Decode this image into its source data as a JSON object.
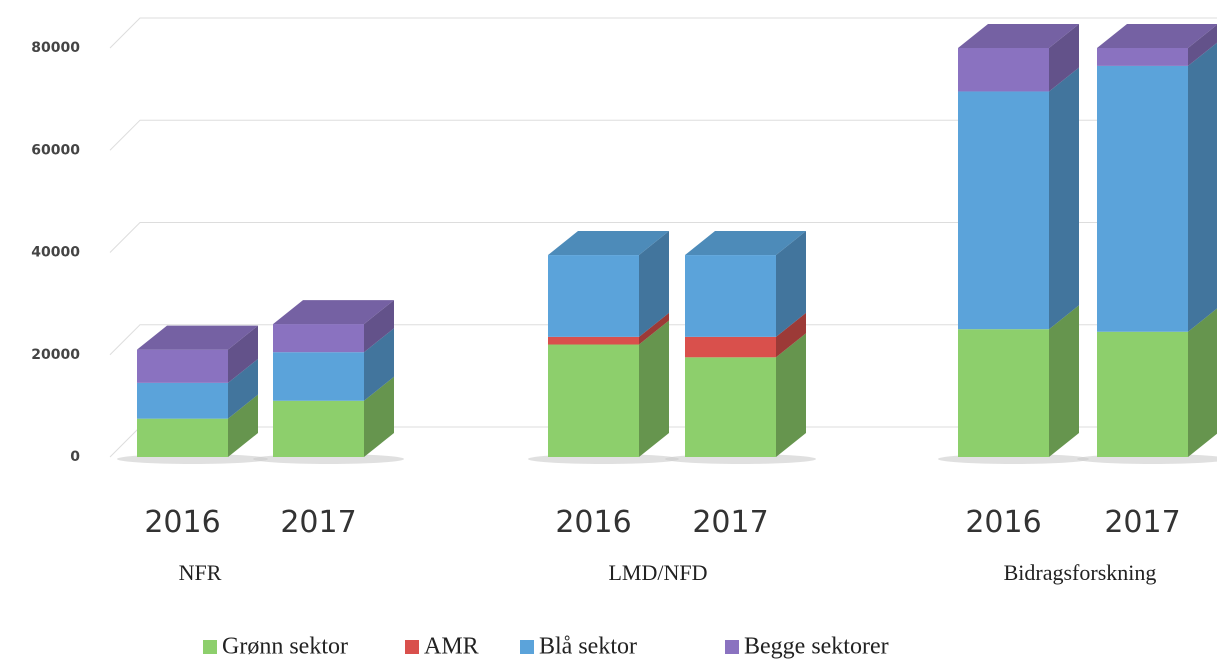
{
  "chart_data": {
    "type": "bar3d_stacked",
    "categories": [
      "2016",
      "2017",
      "2016",
      "2017",
      "2016",
      "2017"
    ],
    "groups": [
      "NFR",
      "LMD/NFD",
      "Bidragsforskning"
    ],
    "series": [
      {
        "name": "Grønn sektor",
        "color": "#8dcf6c",
        "values": [
          7500,
          11000,
          22000,
          19500,
          25000,
          24500
        ]
      },
      {
        "name": "AMR",
        "color": "#d9504c",
        "values": [
          0,
          0,
          1500,
          4000,
          0,
          0
        ]
      },
      {
        "name": "Blå sektor",
        "color": "#5ba3da",
        "values": [
          7000,
          9500,
          16000,
          16000,
          46500,
          52000
        ]
      },
      {
        "name": "Begge sektorer",
        "color": "#8a72c0",
        "values": [
          6500,
          5500,
          0,
          0,
          8500,
          3500
        ]
      }
    ],
    "ylim": [
      0,
      80000
    ],
    "yticks": [
      0,
      20000,
      40000,
      60000,
      80000
    ],
    "grid": true
  }
}
